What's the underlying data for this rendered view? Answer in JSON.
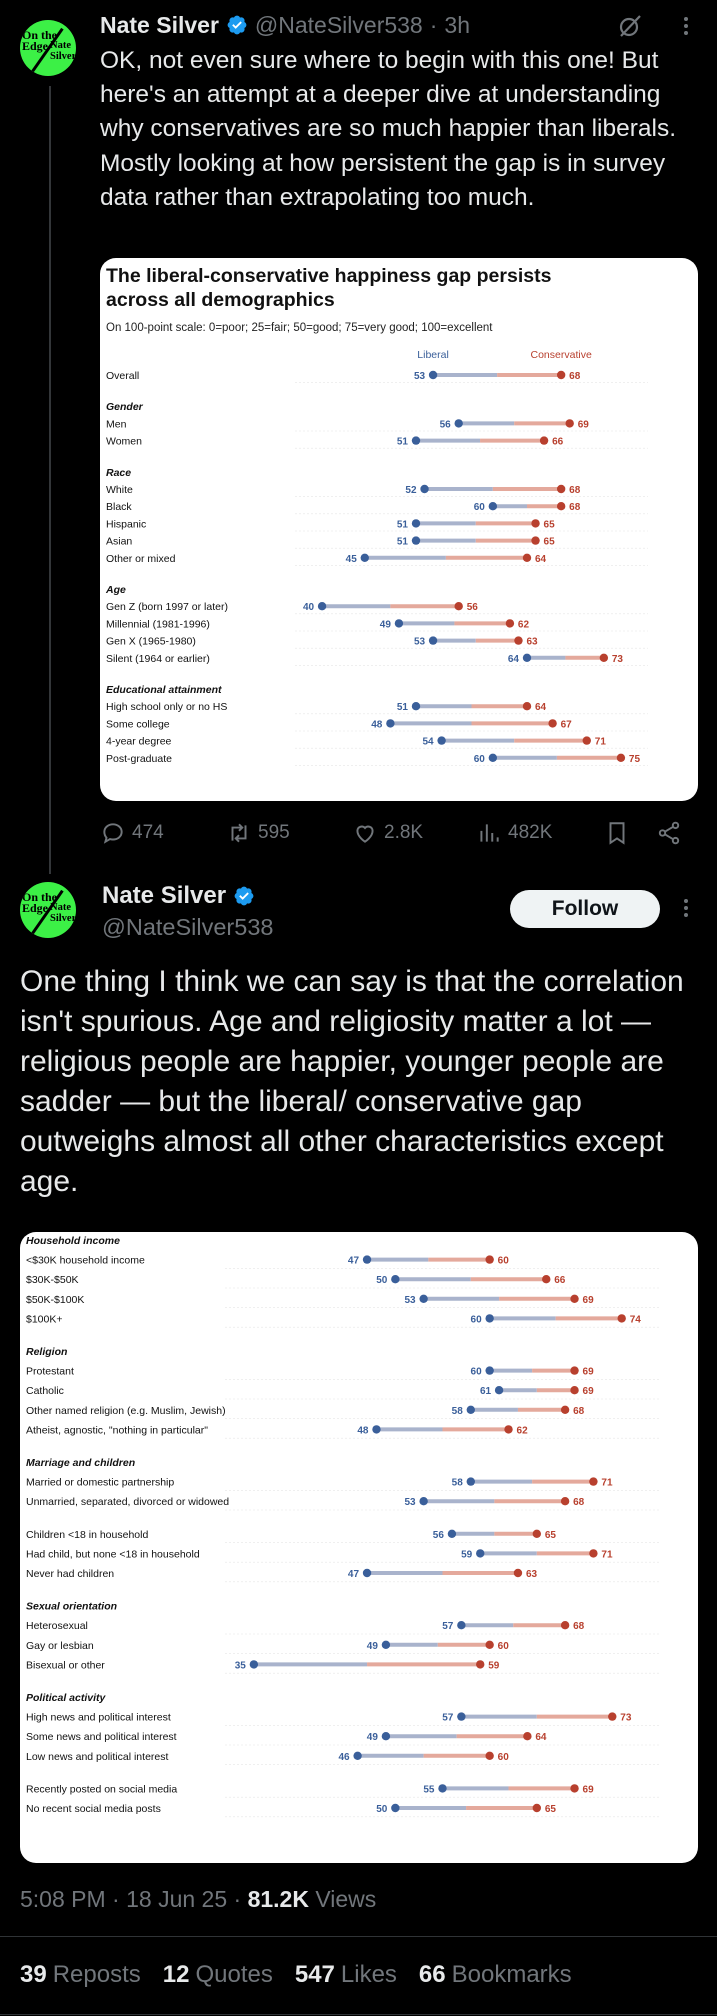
{
  "tweet1": {
    "author": {
      "name": "Nate Silver",
      "handle": "@NateSilver538",
      "time": "3h",
      "avatar_text": [
        "On the",
        "Edge",
        "Nate",
        "Silver"
      ]
    },
    "text": "OK, not even sure where to begin with this one! But here's an attempt at a deeper dive at understanding why conservatives are so much happier than liberals. Mostly looking at how persistent the gap is in survey data rather than extrapolating too much.",
    "actions": {
      "replies": "474",
      "reposts": "595",
      "likes": "2.8K",
      "views": "482K"
    },
    "icons": [
      "grok-icon",
      "more-icon",
      "reply-icon",
      "repost-icon",
      "like-icon",
      "views-icon",
      "bookmark-icon",
      "share-icon"
    ]
  },
  "tweet2": {
    "author": {
      "name": "Nate Silver",
      "handle": "@NateSilver538"
    },
    "follow_label": "Follow",
    "text": "One thing I think we can say is that the correlation isn't spurious. Age and religiosity matter a lot — religious people are happier, younger people are sadder — but the liberal/ conservative gap outweighs almost all other characteristics except age.",
    "timestamp": "5:08 PM · 18 Jun 25 · ",
    "views_count": "81.2K",
    "views_label": " Views",
    "stats": [
      {
        "count": "39",
        "label": "Reposts"
      },
      {
        "count": "12",
        "label": "Quotes"
      },
      {
        "count": "547",
        "label": "Likes"
      },
      {
        "count": "66",
        "label": "Bookmarks"
      }
    ]
  },
  "colors": {
    "liberal": "#3a5f9a",
    "conservative": "#b8402e",
    "verified": "#1d9bf0",
    "avatar": "#3cf046"
  },
  "chart_data": [
    {
      "type": "dumbbell",
      "title": "The liberal-conservative happiness gap persists across all demographics",
      "subtitle": "On 100-point scale: 0=poor; 25=fair; 50=good; 75=very good; 100=excellent",
      "legend": [
        "Liberal",
        "Conservative"
      ],
      "series_names": [
        "Liberal",
        "Conservative"
      ],
      "xlim": [
        38,
        77
      ],
      "groups": [
        {
          "name": "",
          "rows": [
            {
              "label": "Overall",
              "liberal": 53,
              "conservative": 68
            }
          ]
        },
        {
          "name": "Gender",
          "rows": [
            {
              "label": "Men",
              "liberal": 56,
              "conservative": 69
            },
            {
              "label": "Women",
              "liberal": 51,
              "conservative": 66
            }
          ]
        },
        {
          "name": "Race",
          "rows": [
            {
              "label": "White",
              "liberal": 52,
              "conservative": 68
            },
            {
              "label": "Black",
              "liberal": 60,
              "conservative": 68
            },
            {
              "label": "Hispanic",
              "liberal": 51,
              "conservative": 65
            },
            {
              "label": "Asian",
              "liberal": 51,
              "conservative": 65
            },
            {
              "label": "Other or mixed",
              "liberal": 45,
              "conservative": 64
            }
          ]
        },
        {
          "name": "Age",
          "rows": [
            {
              "label": "Gen Z (born 1997 or later)",
              "liberal": 40,
              "conservative": 56
            },
            {
              "label": "Millennial (1981-1996)",
              "liberal": 49,
              "conservative": 62
            },
            {
              "label": "Gen X (1965-1980)",
              "liberal": 53,
              "conservative": 63
            },
            {
              "label": "Silent (1964 or earlier)",
              "liberal": 64,
              "conservative": 73
            }
          ]
        },
        {
          "name": "Educational attainment",
          "rows": [
            {
              "label": "High school only or no HS",
              "liberal": 51,
              "conservative": 64
            },
            {
              "label": "Some college",
              "liberal": 48,
              "conservative": 67
            },
            {
              "label": "4-year degree",
              "liberal": 54,
              "conservative": 71
            },
            {
              "label": "Post-graduate",
              "liberal": 60,
              "conservative": 75
            }
          ]
        }
      ]
    },
    {
      "type": "dumbbell",
      "title": "",
      "xlim": [
        33,
        77
      ],
      "groups": [
        {
          "name": "Household income",
          "rows": [
            {
              "label": "<$30K household income",
              "liberal": 47,
              "conservative": 60
            },
            {
              "label": "$30K-$50K",
              "liberal": 50,
              "conservative": 66
            },
            {
              "label": "$50K-$100K",
              "liberal": 53,
              "conservative": 69
            },
            {
              "label": "$100K+",
              "liberal": 60,
              "conservative": 74
            }
          ]
        },
        {
          "name": "Religion",
          "rows": [
            {
              "label": "Protestant",
              "liberal": 60,
              "conservative": 69
            },
            {
              "label": "Catholic",
              "liberal": 61,
              "conservative": 69
            },
            {
              "label": "Other named religion (e.g. Muslim, Jewish)",
              "liberal": 58,
              "conservative": 68
            },
            {
              "label": "Atheist, agnostic, \"nothing in particular\"",
              "liberal": 48,
              "conservative": 62
            }
          ]
        },
        {
          "name": "Marriage and children",
          "rows": [
            {
              "label": "Married or domestic partnership",
              "liberal": 58,
              "conservative": 71
            },
            {
              "label": "Unmarried, separated, divorced or widowed",
              "liberal": 53,
              "conservative": 68
            }
          ]
        },
        {
          "name": "",
          "rows": [
            {
              "label": "Children <18 in household",
              "liberal": 56,
              "conservative": 65
            },
            {
              "label": "Had child, but none <18 in household",
              "liberal": 59,
              "conservative": 71
            },
            {
              "label": "Never had children",
              "liberal": 47,
              "conservative": 63
            }
          ]
        },
        {
          "name": "Sexual orientation",
          "rows": [
            {
              "label": "Heterosexual",
              "liberal": 57,
              "conservative": 68
            },
            {
              "label": "Gay or lesbian",
              "liberal": 49,
              "conservative": 60
            },
            {
              "label": "Bisexual or other",
              "liberal": 35,
              "conservative": 59
            }
          ]
        },
        {
          "name": "Political activity",
          "rows": [
            {
              "label": "High news and political interest",
              "liberal": 57,
              "conservative": 73
            },
            {
              "label": "Some news and political interest",
              "liberal": 49,
              "conservative": 64
            },
            {
              "label": "Low news and political interest",
              "liberal": 46,
              "conservative": 60
            }
          ]
        },
        {
          "name": "",
          "rows": [
            {
              "label": "Recently posted on social media",
              "liberal": 55,
              "conservative": 69
            },
            {
              "label": "No recent social media posts",
              "liberal": 50,
              "conservative": 65
            }
          ]
        }
      ]
    }
  ]
}
